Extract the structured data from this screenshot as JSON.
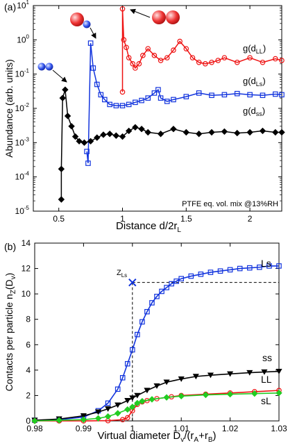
{
  "figure": {
    "panels": [
      {
        "panel_label": "(a)",
        "x_label_main": "Distance d/2r",
        "x_label_sub": "L",
        "y_label": "Abundance (arb. units)",
        "annotation": "PTFE eq. vol. mix @13%RH",
        "x_ticks": [
          "0.5",
          "1",
          "1.5",
          "2"
        ],
        "y_ticks": [
          {
            "base": "10",
            "exp": "-5"
          },
          {
            "base": "10",
            "exp": "-4"
          },
          {
            "base": "10",
            "exp": "-3"
          },
          {
            "base": "10",
            "exp": "-2"
          },
          {
            "base": "10",
            "exp": "-1"
          },
          {
            "base": "10",
            "exp": "0"
          },
          {
            "base": "10",
            "exp": "1"
          }
        ],
        "series_labels": [
          {
            "text": "g(d",
            "sub": "LL",
            "tail": ")"
          },
          {
            "text": "g(d",
            "sub": "Ls",
            "tail": ")"
          },
          {
            "text": "g(d",
            "sub": "ss",
            "tail": ")"
          }
        ]
      },
      {
        "panel_label": "(b)",
        "x_label": "Virtual diameter D",
        "x_label_sub": "v",
        "x_label_tail": "/(r",
        "x_label_sub2": "A",
        "x_label_tail2": "+r",
        "x_label_sub3": "B",
        "x_label_tail3": ")",
        "y_label": "Contacts per particle n",
        "y_label_sub": "Z",
        "y_label_tail": "(D",
        "y_label_sub2": "v",
        "y_label_tail2": ")",
        "x_ticks": [
          "0.98",
          "0.99",
          "1",
          "1.01",
          "1.02",
          "1.03"
        ],
        "y_ticks": [
          "0",
          "2",
          "4",
          "6",
          "8",
          "10",
          "12",
          "14"
        ],
        "z_label": "Z",
        "z_label_sub": "Ls",
        "series_labels": [
          "Ls",
          "ss",
          "LL",
          "sL"
        ]
      }
    ]
  },
  "colors": {
    "red": "#ee1111",
    "blue": "#1133dd",
    "black": "#000000",
    "green": "#22cc22",
    "sphere_red": "#ee3333",
    "sphere_blue": "#3355ee"
  },
  "chart_data": [
    {
      "type": "line",
      "xlim": [
        0.3,
        2.25
      ],
      "ylim_log10": [
        -5,
        1
      ],
      "yscale": "log",
      "series": [
        {
          "name": "g(dLL)",
          "color": "#ee1111",
          "marker": "circle",
          "x": [
            1.0,
            1.0,
            1.01,
            1.03,
            1.05,
            1.08,
            1.1,
            1.13,
            1.16,
            1.2,
            1.25,
            1.3,
            1.35,
            1.4,
            1.45,
            1.5,
            1.55,
            1.6,
            1.65,
            1.7,
            1.75,
            1.8,
            1.9,
            2.0,
            2.1,
            2.2,
            2.25
          ],
          "y": [
            0.03,
            8,
            1.0,
            0.6,
            0.3,
            0.2,
            0.15,
            0.2,
            0.35,
            0.55,
            0.35,
            0.25,
            0.3,
            0.5,
            0.9,
            0.55,
            0.3,
            0.22,
            0.2,
            0.22,
            0.25,
            0.3,
            0.22,
            0.3,
            0.22,
            0.28,
            0.25
          ]
        },
        {
          "name": "g(dLs)",
          "color": "#1133dd",
          "marker": "square",
          "x": [
            0.72,
            0.73,
            0.75,
            0.77,
            0.8,
            0.83,
            0.86,
            0.9,
            0.95,
            1.0,
            1.05,
            1.1,
            1.15,
            1.2,
            1.25,
            1.28,
            1.3,
            1.35,
            1.4,
            1.5,
            1.6,
            1.7,
            1.8,
            1.9,
            2.0,
            2.1,
            2.2,
            2.25
          ],
          "y": [
            0.00055,
            0.00025,
            0.8,
            0.15,
            0.05,
            0.025,
            0.018,
            0.013,
            0.012,
            0.012,
            0.013,
            0.015,
            0.017,
            0.02,
            0.028,
            0.035,
            0.02,
            0.016,
            0.018,
            0.022,
            0.028,
            0.024,
            0.025,
            0.027,
            0.025,
            0.024,
            0.026,
            0.025
          ]
        },
        {
          "name": "g(dss)",
          "color": "#000000",
          "marker": "diamond",
          "x": [
            0.52,
            0.52,
            0.53,
            0.55,
            0.57,
            0.6,
            0.63,
            0.66,
            0.7,
            0.75,
            0.8,
            0.85,
            0.9,
            0.95,
            1.0,
            1.05,
            1.1,
            1.15,
            1.2,
            1.3,
            1.4,
            1.5,
            1.6,
            1.7,
            1.8,
            1.9,
            2.0,
            2.1,
            2.2,
            2.25
          ],
          "y": [
            2.2e-05,
            0.00017,
            0.02,
            0.035,
            0.006,
            0.003,
            0.0015,
            0.0011,
            0.001,
            0.0011,
            0.0014,
            0.0017,
            0.0018,
            0.0016,
            0.0015,
            0.0022,
            0.0028,
            0.0025,
            0.002,
            0.0018,
            0.0025,
            0.002,
            0.0018,
            0.002,
            0.0021,
            0.0019,
            0.002,
            0.0022,
            0.002,
            0.002
          ]
        }
      ]
    },
    {
      "type": "line",
      "xlim": [
        0.98,
        1.03
      ],
      "ylim": [
        0,
        14
      ],
      "z_ls": {
        "x": 1.0,
        "y": 10.9
      },
      "series": [
        {
          "name": "Ls",
          "color": "#1133dd",
          "marker": "square",
          "x": [
            0.98,
            0.985,
            0.99,
            0.993,
            0.995,
            0.997,
            0.998,
            0.999,
            1.0,
            1.001,
            1.002,
            1.003,
            1.004,
            1.005,
            1.006,
            1.007,
            1.008,
            1.009,
            1.01,
            1.012,
            1.014,
            1.016,
            1.018,
            1.02,
            1.022,
            1.024,
            1.026,
            1.028,
            1.03
          ],
          "y": [
            0.05,
            0.1,
            0.3,
            0.8,
            1.4,
            2.5,
            3.4,
            4.5,
            5.6,
            6.8,
            7.8,
            8.6,
            9.3,
            9.8,
            10.2,
            10.5,
            10.8,
            11.0,
            11.2,
            11.4,
            11.55,
            11.7,
            11.8,
            11.9,
            12.0,
            12.05,
            12.1,
            12.2,
            12.2
          ]
        },
        {
          "name": "ss",
          "color": "#000000",
          "marker": "triangle",
          "x": [
            0.98,
            0.985,
            0.99,
            0.993,
            0.995,
            0.997,
            0.999,
            1.0,
            1.001,
            1.003,
            1.005,
            1.007,
            1.01,
            1.013,
            1.016,
            1.02,
            1.024,
            1.027,
            1.03
          ],
          "y": [
            0.05,
            0.15,
            0.4,
            0.7,
            0.95,
            1.25,
            1.6,
            1.8,
            2.0,
            2.4,
            2.75,
            3.05,
            3.3,
            3.5,
            3.6,
            3.7,
            3.8,
            3.85,
            3.9
          ]
        },
        {
          "name": "LL",
          "color": "#ee1111",
          "marker": "circle",
          "x": [
            0.98,
            0.985,
            0.99,
            0.995,
            0.998,
            0.999,
            1.0,
            1.001,
            1.002,
            1.003,
            1.005,
            1.008,
            1.01,
            1.015,
            1.02,
            1.025,
            1.03
          ],
          "y": [
            0.0,
            0.0,
            0.0,
            0.02,
            0.1,
            0.25,
            0.8,
            1.3,
            1.5,
            1.6,
            1.75,
            1.9,
            2.0,
            2.1,
            2.2,
            2.3,
            2.4
          ]
        },
        {
          "name": "sL",
          "color": "#22cc22",
          "marker": "diamond",
          "x": [
            0.98,
            0.985,
            0.99,
            0.993,
            0.995,
            0.997,
            0.999,
            1.0,
            1.001,
            1.002,
            1.004,
            1.007,
            1.01,
            1.015,
            1.02,
            1.025,
            1.03
          ],
          "y": [
            0.0,
            0.05,
            0.1,
            0.2,
            0.35,
            0.6,
            0.9,
            1.1,
            1.4,
            1.55,
            1.7,
            1.85,
            1.95,
            2.05,
            2.1,
            2.15,
            2.2
          ]
        }
      ]
    }
  ]
}
